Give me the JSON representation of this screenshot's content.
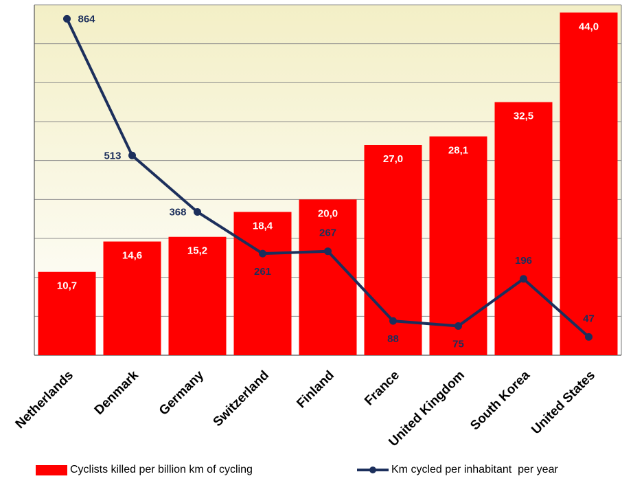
{
  "chart_data": {
    "type": "bar",
    "categories": [
      "Netherlands",
      "Denmark",
      "Germany",
      "Switzerland",
      "Finland",
      "France",
      "United Kingdom",
      "South Korea",
      "United States"
    ],
    "series": [
      {
        "name": "Cyclists killed per billion km of cycling",
        "type": "bar",
        "values": [
          10.7,
          14.6,
          15.2,
          18.4,
          20.0,
          27.0,
          28.1,
          32.5,
          44.0
        ],
        "labels": [
          "10,7",
          "14,6",
          "15,2",
          "18,4",
          "20,0",
          "27,0",
          "28,1",
          "32,5",
          "44,0"
        ],
        "color": "#ff0000",
        "ylim": [
          0,
          45
        ]
      },
      {
        "name": "Km cycled per inhabitant  per year",
        "type": "line",
        "values": [
          864,
          513,
          368,
          261,
          267,
          88,
          75,
          196,
          47
        ],
        "labels": [
          "864",
          "513",
          "368",
          "261",
          "267",
          "88",
          "75",
          "196",
          "47"
        ],
        "color": "#1c2f5c",
        "ylim": [
          0,
          900
        ]
      }
    ],
    "grid": true,
    "legend_position": "bottom",
    "background": "#f5f3d7"
  }
}
